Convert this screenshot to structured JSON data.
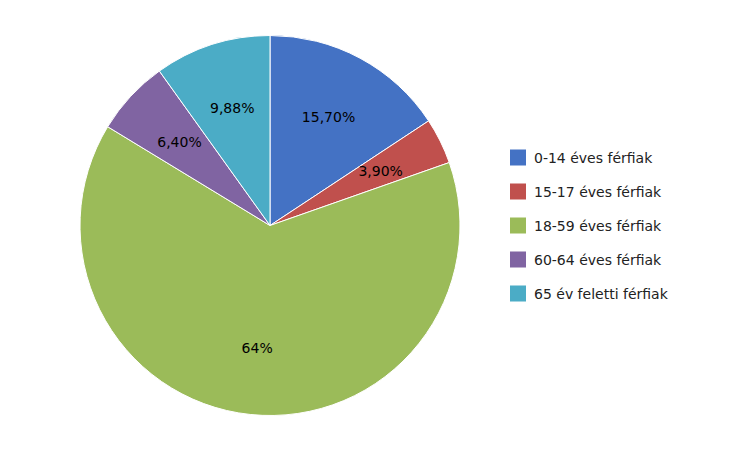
{
  "chart_data": {
    "type": "pie",
    "categories": [
      "0-14 éves férfiak",
      "15-17 éves férfiak",
      "18-59 éves férfiak",
      "60-64 éves férfiak",
      "65 év feletti férfiak"
    ],
    "values": [
      15.7,
      3.9,
      64.0,
      6.4,
      9.88
    ],
    "value_labels": [
      "15,70%",
      "3,90%",
      "64%",
      "6,40%",
      "9,88%"
    ],
    "colors": [
      "#4472C4",
      "#C0504D",
      "#9BBB59",
      "#8064A2",
      "#4BACC6"
    ],
    "data_labels": true,
    "legend": "right"
  }
}
